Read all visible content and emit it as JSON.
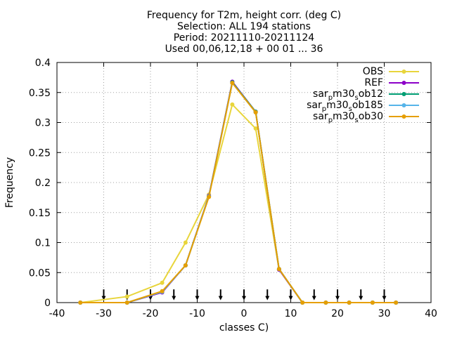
{
  "chart_data": {
    "type": "line",
    "title_lines": [
      "Frequency  for T2m, height corr. (deg C)",
      "Selection: ALL    194 stations",
      "Period: 20211110-20211124",
      "Used 00,06,12,18 + 00 01 ... 36"
    ],
    "xlabel": "classes C)",
    "ylabel": "Frequency",
    "xlim": [
      -40,
      40
    ],
    "ylim": [
      0,
      0.4
    ],
    "xticks": [
      -40,
      -30,
      -20,
      -10,
      0,
      10,
      20,
      30,
      40
    ],
    "xtick_labels": [
      "-40",
      "-30",
      "-20",
      "-10",
      "0",
      "10",
      "20",
      "30",
      "40"
    ],
    "yticks": [
      0,
      0.05,
      0.1,
      0.15,
      0.2,
      0.25,
      0.3,
      0.35,
      0.4
    ],
    "ytick_labels": [
      "0",
      "0.05",
      "0.1",
      "0.15",
      "0.2",
      "0.25",
      "0.3",
      "0.35",
      "0.4"
    ],
    "grid": true,
    "legend_position": "top-right",
    "x": [
      -35,
      -25,
      -17.5,
      -12.5,
      -7.5,
      -2.5,
      2.5,
      7.5,
      12.5,
      17.5,
      22.5,
      27.5,
      32.5
    ],
    "series": [
      {
        "name": "OBS",
        "color": "#e8d53c",
        "marker": "circle",
        "values": [
          0.0,
          0.01,
          0.033,
          0.1,
          0.18,
          0.33,
          0.29,
          0.055,
          0.0,
          0.0,
          0.0,
          0.0,
          0.0
        ]
      },
      {
        "name": "REF",
        "color": "#8c00c8",
        "marker": "circle",
        "values": [
          0.0,
          0.0,
          0.017,
          0.062,
          0.178,
          0.368,
          0.318,
          0.055,
          0.0,
          0.0,
          0.0,
          0.0,
          0.0
        ]
      },
      {
        "name": "sar_p m30_s ob12",
        "color": "#009e73",
        "marker": "circle",
        "values": [
          0.0,
          0.0,
          0.018,
          0.062,
          0.177,
          0.367,
          0.318,
          0.056,
          0.0,
          0.0,
          0.0,
          0.0,
          0.0
        ]
      },
      {
        "name": "sar_p m30_s ob185",
        "color": "#56b4e9",
        "marker": "circle",
        "values": [
          0.0,
          0.0,
          0.018,
          0.062,
          0.177,
          0.366,
          0.317,
          0.056,
          0.0,
          0.0,
          0.0,
          0.0,
          0.0
        ]
      },
      {
        "name": "sar_p m30_s ob30",
        "color": "#e69f00",
        "marker": "circle",
        "values": [
          0.0,
          0.0,
          0.019,
          0.062,
          0.176,
          0.366,
          0.317,
          0.056,
          0.0,
          0.0,
          0.0,
          0.0,
          0.0
        ]
      }
    ],
    "legend": [
      {
        "parts": [
          "sar",
          "p",
          "m30",
          "s",
          "ob12"
        ]
      },
      {
        "parts": [
          "sar",
          "p",
          "m30",
          "s",
          "ob185"
        ]
      },
      {
        "parts": [
          "sar",
          "p",
          "m30",
          "s",
          "ob30"
        ]
      }
    ],
    "arrow_markers_x": [
      -30,
      -25,
      -20,
      -15,
      -10,
      -5,
      0,
      5,
      10,
      15,
      20,
      25,
      30
    ]
  }
}
